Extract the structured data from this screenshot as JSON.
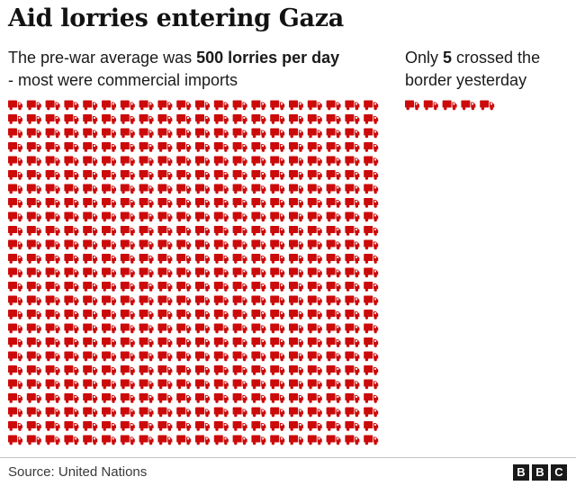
{
  "title": "Aid lorries entering Gaza",
  "left_caption": {
    "line1_prefix": "The pre-war average was ",
    "line1_bold": "500 lorries per day",
    "line2": "- most were commercial imports"
  },
  "right_caption": {
    "line1_prefix": "Only ",
    "line1_bold": "5",
    "line1_suffix": " crossed the",
    "line2": "border yesterday"
  },
  "source": "Source: United Nations",
  "logo": [
    "B",
    "B",
    "C"
  ],
  "colors": {
    "lorry": "#cc0a0a",
    "lorry_window": "#ffffff"
  },
  "icon": "lorry-icon",
  "chart_data": {
    "type": "pictogram",
    "units": "lorries per day",
    "series": [
      {
        "name": "The pre-war average was 500 lorries per day",
        "value": 500
      },
      {
        "name": "Only 5 crossed the border yesterday",
        "value": 5
      }
    ]
  }
}
